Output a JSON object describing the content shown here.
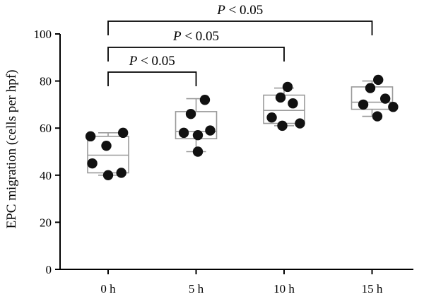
{
  "chart_data": {
    "type": "box",
    "ylabel": "EPC migration (cells per hpf)",
    "xlabel": "",
    "ylim": [
      0,
      100
    ],
    "yticks": [
      0,
      20,
      40,
      60,
      80,
      100
    ],
    "categories": [
      "0 h",
      "5 h",
      "10 h",
      "15 h"
    ],
    "boxes": [
      {
        "min": 40,
        "q1": 41,
        "median": 48.5,
        "q3": 56.5,
        "max": 58
      },
      {
        "min": 50,
        "q1": 55.5,
        "median": 58.5,
        "q3": 67,
        "max": 72.5
      },
      {
        "min": 61,
        "q1": 62,
        "median": 67.5,
        "q3": 74,
        "max": 77
      },
      {
        "min": 65,
        "q1": 68,
        "median": 71,
        "q3": 77.5,
        "max": 80
      }
    ],
    "points": [
      [
        {
          "dx": -0.2,
          "y": 56.5
        },
        {
          "dx": 0.17,
          "y": 58
        },
        {
          "dx": -0.02,
          "y": 52.5
        },
        {
          "dx": -0.18,
          "y": 45
        },
        {
          "dx": 0.15,
          "y": 41
        },
        {
          "dx": 0.0,
          "y": 40
        }
      ],
      [
        {
          "dx": -0.06,
          "y": 66
        },
        {
          "dx": 0.1,
          "y": 72
        },
        {
          "dx": -0.14,
          "y": 58
        },
        {
          "dx": 0.02,
          "y": 57
        },
        {
          "dx": 0.16,
          "y": 59
        },
        {
          "dx": 0.02,
          "y": 50
        }
      ],
      [
        {
          "dx": 0.04,
          "y": 77.5
        },
        {
          "dx": -0.04,
          "y": 73
        },
        {
          "dx": 0.1,
          "y": 70.5
        },
        {
          "dx": -0.14,
          "y": 64.5
        },
        {
          "dx": 0.18,
          "y": 62
        },
        {
          "dx": -0.02,
          "y": 61
        }
      ],
      [
        {
          "dx": 0.07,
          "y": 80.5
        },
        {
          "dx": -0.02,
          "y": 77
        },
        {
          "dx": 0.15,
          "y": 72.5
        },
        {
          "dx": -0.1,
          "y": 70
        },
        {
          "dx": 0.24,
          "y": 69
        },
        {
          "dx": 0.06,
          "y": 65
        }
      ]
    ],
    "annotations": [
      {
        "text": "P < 0.05",
        "from": 0,
        "to": 1
      },
      {
        "text": "P < 0.05",
        "from": 0,
        "to": 2
      },
      {
        "text": "P < 0.05",
        "from": 0,
        "to": 3
      }
    ]
  }
}
